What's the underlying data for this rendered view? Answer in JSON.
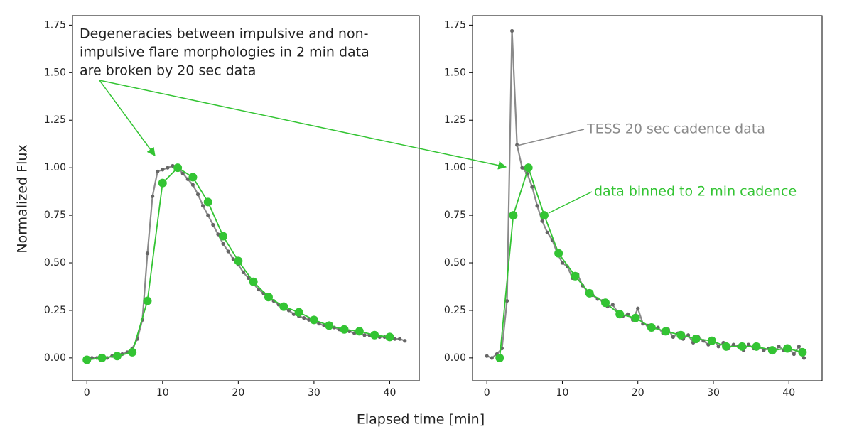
{
  "chart_data": [
    {
      "type": "line",
      "xlim": [
        -1.9,
        43.9
      ],
      "xticks": [
        0,
        10,
        20,
        30,
        40
      ],
      "ylim": [
        -0.12,
        1.8
      ],
      "yticks": [
        {
          "value": 0,
          "label": "0.00"
        },
        {
          "value": 0.25,
          "label": "0.25"
        },
        {
          "value": 0.5,
          "label": "0.50"
        },
        {
          "value": 0.75,
          "label": "0.75"
        },
        {
          "value": 1,
          "label": "1.00"
        },
        {
          "value": 1.25,
          "label": "1.25"
        },
        {
          "value": 1.5,
          "label": "1.50"
        },
        {
          "value": 1.75,
          "label": "1.75"
        }
      ],
      "annotation": [
        "Degeneracies between impulsive and non-",
        "impulsive flare morphologies in 2 min data",
        "are broken by 20 sec data"
      ],
      "series": [
        {
          "color": "#8a8a8a",
          "marker": "small",
          "x": [
            0,
            0.67,
            1.33,
            2,
            2.67,
            3.33,
            4,
            4.67,
            5.33,
            6,
            6.67,
            7.33,
            8,
            8.67,
            9.33,
            10,
            10.67,
            11.33,
            12,
            12.67,
            13.33,
            14,
            14.67,
            15.33,
            16,
            16.67,
            17.33,
            18,
            18.67,
            19.33,
            20,
            20.67,
            21.33,
            22,
            22.67,
            23.33,
            24,
            24.67,
            25.33,
            26,
            26.67,
            27.33,
            28,
            28.67,
            29.33,
            30,
            30.67,
            31.33,
            32,
            32.67,
            33.33,
            34,
            34.67,
            35.33,
            36,
            36.67,
            37.33,
            38,
            38.67,
            39.33,
            40,
            40.67,
            41.33,
            42
          ],
          "values": [
            -0.01,
            0,
            0,
            0,
            0,
            0.01,
            0.01,
            0.02,
            0.03,
            0.05,
            0.1,
            0.2,
            0.55,
            0.85,
            0.98,
            0.99,
            1.0,
            1.01,
            1.0,
            0.97,
            0.94,
            0.91,
            0.86,
            0.8,
            0.75,
            0.7,
            0.65,
            0.6,
            0.56,
            0.52,
            0.49,
            0.45,
            0.42,
            0.39,
            0.36,
            0.34,
            0.32,
            0.3,
            0.28,
            0.26,
            0.25,
            0.23,
            0.22,
            0.21,
            0.2,
            0.19,
            0.18,
            0.17,
            0.16,
            0.16,
            0.15,
            0.14,
            0.14,
            0.13,
            0.13,
            0.12,
            0.12,
            0.11,
            0.11,
            0.11,
            0.1,
            0.1,
            0.1,
            0.09
          ]
        },
        {
          "color": "#33c433",
          "marker": "large",
          "x": [
            0,
            2,
            4,
            6,
            8,
            10,
            12,
            14,
            16,
            18,
            20,
            22,
            24,
            26,
            28,
            30,
            32,
            34,
            36,
            38,
            40
          ],
          "values": [
            -0.01,
            0,
            0.01,
            0.03,
            0.3,
            0.92,
            1.0,
            0.95,
            0.82,
            0.64,
            0.51,
            0.4,
            0.32,
            0.27,
            0.24,
            0.2,
            0.17,
            0.15,
            0.14,
            0.12,
            0.11
          ]
        }
      ]
    },
    {
      "type": "line",
      "xlim": [
        -1.9,
        44.4
      ],
      "xticks": [
        0,
        10,
        20,
        30,
        40
      ],
      "ylim": [
        -0.12,
        1.8
      ],
      "yticks": [
        {
          "value": 0,
          "label": "0.00"
        },
        {
          "value": 0.25,
          "label": "0.25"
        },
        {
          "value": 0.5,
          "label": "0.50"
        },
        {
          "value": 0.75,
          "label": "0.75"
        },
        {
          "value": 1,
          "label": "1.00"
        },
        {
          "value": 1.25,
          "label": "1.25"
        },
        {
          "value": 1.5,
          "label": "1.50"
        },
        {
          "value": 1.75,
          "label": "1.75"
        }
      ],
      "series": [
        {
          "name": "TESS 20 sec cadence data",
          "color": "#8a8a8a",
          "marker": "small",
          "x": [
            0,
            0.67,
            1.33,
            2,
            2.67,
            3.33,
            4,
            4.67,
            5.33,
            6,
            6.67,
            7.33,
            8,
            8.67,
            9.33,
            10,
            10.67,
            11.33,
            12,
            12.67,
            13.33,
            14,
            14.67,
            15.33,
            16,
            16.67,
            17.33,
            18,
            18.67,
            19.33,
            20,
            20.67,
            21.33,
            22,
            22.67,
            23.33,
            24,
            24.67,
            25.33,
            26,
            26.67,
            27.33,
            28,
            28.67,
            29.33,
            30,
            30.67,
            31.33,
            32,
            32.67,
            33.33,
            34,
            34.67,
            35.33,
            36,
            36.67,
            37.33,
            38,
            38.67,
            39.33,
            40,
            40.67,
            41.33,
            42
          ],
          "values": [
            0.01,
            0,
            0.02,
            0.05,
            0.3,
            1.72,
            1.12,
            1.0,
            0.97,
            0.9,
            0.8,
            0.72,
            0.66,
            0.62,
            0.55,
            0.5,
            0.48,
            0.42,
            0.44,
            0.38,
            0.35,
            0.33,
            0.31,
            0.3,
            0.27,
            0.28,
            0.24,
            0.22,
            0.23,
            0.2,
            0.26,
            0.18,
            0.17,
            0.15,
            0.16,
            0.13,
            0.15,
            0.11,
            0.13,
            0.1,
            0.12,
            0.08,
            0.11,
            0.09,
            0.07,
            0.1,
            0.06,
            0.08,
            0.05,
            0.07,
            0.06,
            0.04,
            0.07,
            0.05,
            0.06,
            0.04,
            0.05,
            0.03,
            0.06,
            0.04,
            0.05,
            0.02,
            0.06,
            0.0
          ]
        },
        {
          "name": "data binned to 2 min cadence",
          "color": "#33c433",
          "marker": "large",
          "x": [
            1.7,
            3.5,
            5.5,
            7.6,
            9.5,
            11.7,
            13.6,
            15.7,
            17.6,
            19.7,
            21.8,
            23.7,
            25.7,
            27.7,
            29.8,
            31.7,
            33.8,
            35.7,
            37.8,
            39.8,
            41.8
          ],
          "values": [
            0,
            0.75,
            1.0,
            0.75,
            0.55,
            0.43,
            0.34,
            0.29,
            0.23,
            0.21,
            0.16,
            0.14,
            0.12,
            0.1,
            0.09,
            0.06,
            0.06,
            0.06,
            0.04,
            0.05,
            0.03
          ]
        }
      ]
    }
  ],
  "shared_xlabel": "Elapsed time [min]",
  "shared_ylabel": "Normalized Flux"
}
